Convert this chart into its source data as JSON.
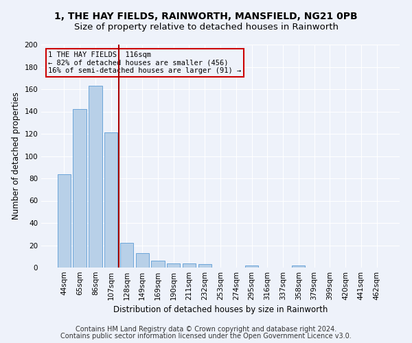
{
  "title": "1, THE HAY FIELDS, RAINWORTH, MANSFIELD, NG21 0PB",
  "subtitle": "Size of property relative to detached houses in Rainworth",
  "xlabel": "Distribution of detached houses by size in Rainworth",
  "ylabel": "Number of detached properties",
  "categories": [
    "44sqm",
    "65sqm",
    "86sqm",
    "107sqm",
    "128sqm",
    "149sqm",
    "169sqm",
    "190sqm",
    "211sqm",
    "232sqm",
    "253sqm",
    "274sqm",
    "295sqm",
    "316sqm",
    "337sqm",
    "358sqm",
    "379sqm",
    "399sqm",
    "420sqm",
    "441sqm",
    "462sqm"
  ],
  "values": [
    84,
    142,
    163,
    121,
    22,
    13,
    6,
    4,
    4,
    3,
    0,
    0,
    2,
    0,
    0,
    2,
    0,
    0,
    0,
    0,
    0
  ],
  "bar_color": "#b8d0e8",
  "bar_edge_color": "#5b9bd5",
  "vline_x": 3.5,
  "vline_color": "#aa0000",
  "annotation_text": "1 THE HAY FIELDS: 116sqm\n← 82% of detached houses are smaller (456)\n16% of semi-detached houses are larger (91) →",
  "annotation_box_color": "#cc0000",
  "ylim": [
    0,
    200
  ],
  "yticks": [
    0,
    20,
    40,
    60,
    80,
    100,
    120,
    140,
    160,
    180,
    200
  ],
  "footnote_line1": "Contains HM Land Registry data © Crown copyright and database right 2024.",
  "footnote_line2": "Contains public sector information licensed under the Open Government Licence v3.0.",
  "background_color": "#eef2fa",
  "grid_color": "#ffffff",
  "title_fontsize": 10,
  "subtitle_fontsize": 9.5,
  "axis_label_fontsize": 8.5,
  "tick_fontsize": 7.5,
  "footnote_fontsize": 7
}
